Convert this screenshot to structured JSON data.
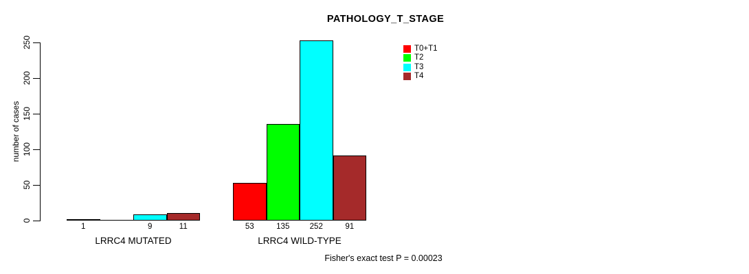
{
  "chart_data": {
    "type": "bar",
    "title": "PATHOLOGY_T_STAGE",
    "ylabel": "number of cases",
    "xlabel": "",
    "ylim": [
      0,
      250
    ],
    "yticks": [
      0,
      50,
      100,
      150,
      200,
      250
    ],
    "grid": false,
    "legend_position": "top-right-inside",
    "categories": [
      "T0+T1",
      "T2",
      "T3",
      "T4"
    ],
    "colors": [
      "#FF0000",
      "#00FF00",
      "#00FFFF",
      "#A52A2A"
    ],
    "groups": [
      {
        "label": "LRRC4 MUTATED",
        "values": [
          1,
          0,
          9,
          11
        ],
        "bar_labels": [
          "1",
          "",
          "9",
          "11"
        ]
      },
      {
        "label": "LRRC4 WILD-TYPE",
        "values": [
          53,
          135,
          252,
          91
        ],
        "bar_labels": [
          "53",
          "135",
          "252",
          "91"
        ]
      }
    ],
    "footer": "Fisher's exact test P = 0.00023"
  }
}
